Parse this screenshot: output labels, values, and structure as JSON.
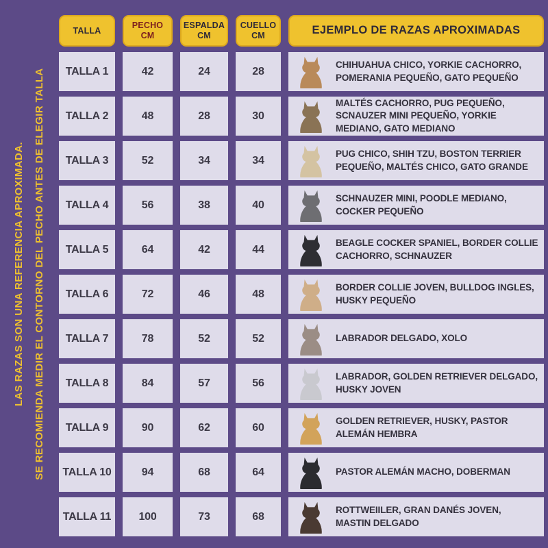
{
  "note": {
    "line1": "LAS RAZAS SON UNA REFERENCIA APROXIMADA.",
    "line2": "SE RECOMIENDA MEDIR EL CONTORNO DEL PECHO ANTES DE ELEGIR TALLA"
  },
  "header": {
    "talla": "TALLA",
    "pecho": "PECHO",
    "pecho_unit": "CM",
    "espalda": "ESPALDA",
    "espalda_unit": "CM",
    "cuello": "CUELLO",
    "cuello_unit": "CM",
    "ejemplo": "EJEMPLO DE RAZAS APROXIMADAS"
  },
  "colors": {
    "background_purple": "#5c4a87",
    "cell_lavender": "#dfdcea",
    "header_yellow": "#efc22e",
    "header_text": "#2e2937",
    "pecho_header_text": "#7c1f1f",
    "note_text": "#eec02f",
    "cell_text": "#3c3946"
  },
  "rows": [
    {
      "talla": "TALLA 1",
      "pecho": "42",
      "espalda": "24",
      "cuello": "28",
      "breeds": "CHIHUAHUA CHICO, YORKIE CACHORRO, POMERANIA PEQUEÑO, GATO PEQUEÑO",
      "icon": "chihuahua-icon",
      "dog_color": "#b98a5a"
    },
    {
      "talla": "TALLA 2",
      "pecho": "48",
      "espalda": "28",
      "cuello": "30",
      "breeds": "MALTÉS CACHORRO, PUG PEQUEÑO, SCNAUZER MINI PEQUEÑO, YORKIE MEDIANO, GATO MEDIANO",
      "icon": "yorkie-icon",
      "dog_color": "#8a7355"
    },
    {
      "talla": "TALLA 3",
      "pecho": "52",
      "espalda": "34",
      "cuello": "34",
      "breeds": "PUG CHICO, SHIH TZU, BOSTON TERRIER PEQUEÑO, MALTÉS CHICO, GATO GRANDE",
      "icon": "shih-tzu-icon",
      "dog_color": "#d4c3a2"
    },
    {
      "talla": "TALLA 4",
      "pecho": "56",
      "espalda": "38",
      "cuello": "40",
      "breeds": "SCHNAUZER MINI, POODLE MEDIANO, COCKER PEQUEÑO",
      "icon": "schnauzer-icon",
      "dog_color": "#6e6e72"
    },
    {
      "talla": "TALLA 5",
      "pecho": "64",
      "espalda": "42",
      "cuello": "44",
      "breeds": "BEAGLE COCKER SPANIEL, BORDER COLLIE CACHORRO, SCHNAUZER",
      "icon": "border-collie-icon",
      "dog_color": "#2e2e33"
    },
    {
      "talla": "TALLA 6",
      "pecho": "72",
      "espalda": "46",
      "cuello": "48",
      "breeds": "BORDER COLLIE JOVEN, BULLDOG INGLES, HUSKY PEQUEÑO",
      "icon": "bulldog-icon",
      "dog_color": "#cfae88"
    },
    {
      "talla": "TALLA 7",
      "pecho": "78",
      "espalda": "52",
      "cuello": "52",
      "breeds": "LABRADOR DELGADO, XOLO",
      "icon": "xolo-icon",
      "dog_color": "#9b8d85"
    },
    {
      "talla": "TALLA 8",
      "pecho": "84",
      "espalda": "57",
      "cuello": "56",
      "breeds": "LABRADOR, GOLDEN RETRIEVER DELGADO, HUSKY JOVEN",
      "icon": "dalmatian-icon",
      "dog_color": "#c9c9cf"
    },
    {
      "talla": "TALLA 9",
      "pecho": "90",
      "espalda": "62",
      "cuello": "60",
      "breeds": "GOLDEN RETRIEVER, HUSKY, PASTOR ALEMÁN HEMBRA",
      "icon": "golden-retriever-icon",
      "dog_color": "#d2a35a"
    },
    {
      "talla": "TALLA 10",
      "pecho": "94",
      "espalda": "68",
      "cuello": "64",
      "breeds": "PASTOR ALEMÁN MACHO, DOBERMAN",
      "icon": "doberman-icon",
      "dog_color": "#2b2b30"
    },
    {
      "talla": "TALLA 11",
      "pecho": "100",
      "espalda": "73",
      "cuello": "68",
      "breeds": "ROTTWEIILER, GRAN DANÉS JOVEN, MASTIN DELGADO",
      "icon": "rottweiler-icon",
      "dog_color": "#4a3a32"
    }
  ],
  "chart_data": {
    "type": "table",
    "title": "EJEMPLO DE RAZAS APROXIMADAS",
    "columns": [
      "TALLA",
      "PECHO CM",
      "ESPALDA CM",
      "CUELLO CM",
      "EJEMPLO DE RAZAS APROXIMADAS"
    ],
    "rows": [
      [
        "TALLA 1",
        42,
        24,
        28,
        "CHIHUAHUA CHICO, YORKIE CACHORRO, POMERANIA PEQUEÑO, GATO PEQUEÑO"
      ],
      [
        "TALLA 2",
        48,
        28,
        30,
        "MALTÉS CACHORRO, PUG PEQUEÑO, SCNAUZER MINI PEQUEÑO, YORKIE MEDIANO, GATO MEDIANO"
      ],
      [
        "TALLA 3",
        52,
        34,
        34,
        "PUG CHICO, SHIH TZU, BOSTON TERRIER PEQUEÑO, MALTÉS CHICO, GATO GRANDE"
      ],
      [
        "TALLA 4",
        56,
        38,
        40,
        "SCHNAUZER MINI, POODLE MEDIANO, COCKER PEQUEÑO"
      ],
      [
        "TALLA 5",
        64,
        42,
        44,
        "BEAGLE COCKER SPANIEL, BORDER COLLIE CACHORRO, SCHNAUZER"
      ],
      [
        "TALLA 6",
        72,
        46,
        48,
        "BORDER COLLIE JOVEN, BULLDOG INGLES, HUSKY PEQUEÑO"
      ],
      [
        "TALLA 7",
        78,
        52,
        52,
        "LABRADOR DELGADO, XOLO"
      ],
      [
        "TALLA 8",
        84,
        57,
        56,
        "LABRADOR, GOLDEN RETRIEVER DELGADO, HUSKY JOVEN"
      ],
      [
        "TALLA 9",
        90,
        62,
        60,
        "GOLDEN RETRIEVER, HUSKY, PASTOR ALEMÁN HEMBRA"
      ],
      [
        "TALLA 10",
        94,
        68,
        64,
        "PASTOR ALEMÁN MACHO, DOBERMAN"
      ],
      [
        "TALLA 11",
        100,
        73,
        68,
        "ROTTWEIILER, GRAN DANÉS JOVEN, MASTIN DELGADO"
      ]
    ],
    "footnote": "LAS RAZAS SON UNA REFERENCIA APROXIMADA. SE RECOMIENDA MEDIR EL CONTORNO DEL PECHO ANTES DE ELEGIR TALLA"
  }
}
